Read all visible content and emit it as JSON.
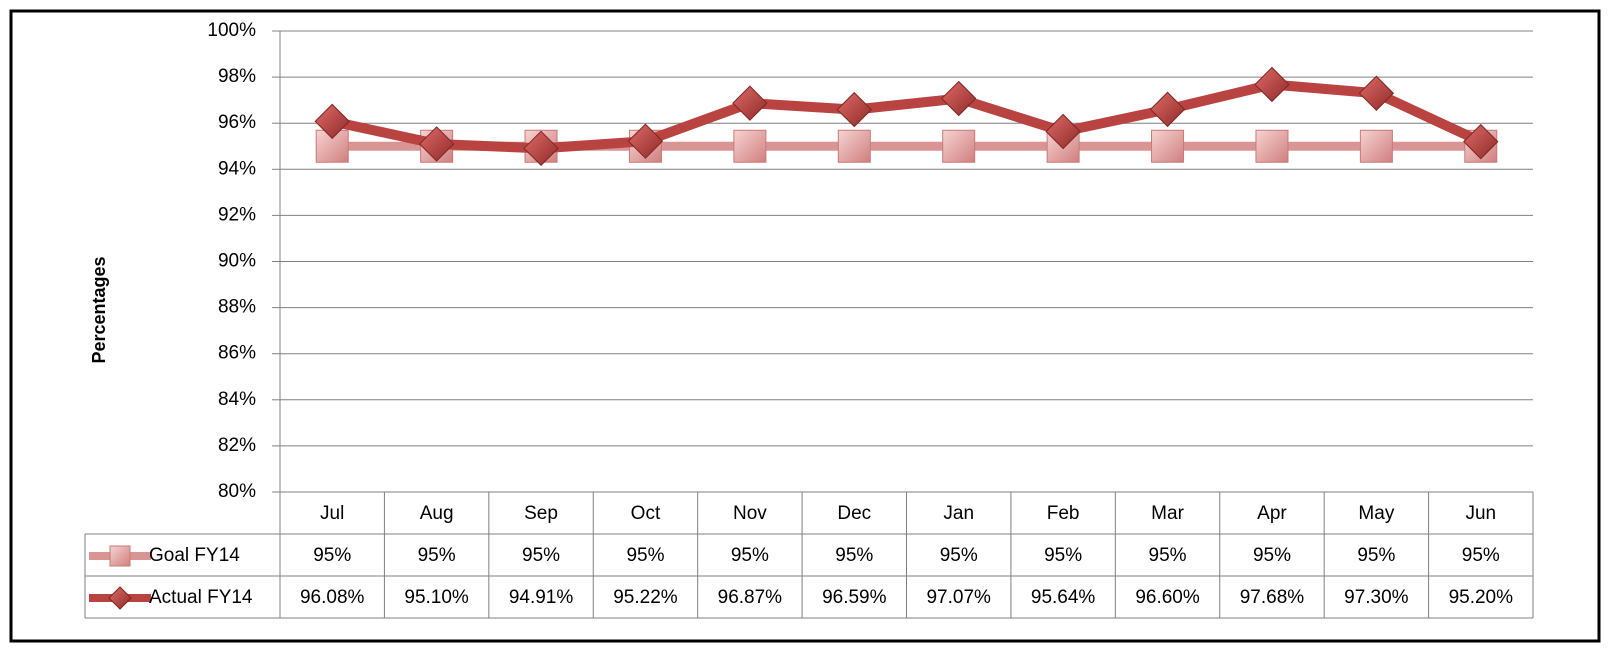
{
  "chart_data": {
    "type": "line",
    "y_label": "Percentages",
    "categories": [
      "Jul",
      "Aug",
      "Sep",
      "Oct",
      "Nov",
      "Dec",
      "Jan",
      "Feb",
      "Mar",
      "Apr",
      "May",
      "Jun"
    ],
    "series": [
      {
        "name": "Goal FY14",
        "color": "#d99594",
        "marker": "square",
        "values": [
          95,
          95,
          95,
          95,
          95,
          95,
          95,
          95,
          95,
          95,
          95,
          95
        ],
        "value_labels": [
          "95%",
          "95%",
          "95%",
          "95%",
          "95%",
          "95%",
          "95%",
          "95%",
          "95%",
          "95%",
          "95%",
          "95%"
        ]
      },
      {
        "name": "Actual FY14",
        "color": "#b84340",
        "marker": "diamond",
        "values": [
          96.08,
          95.1,
          94.91,
          95.22,
          96.87,
          96.59,
          97.07,
          95.64,
          96.6,
          97.68,
          97.3,
          95.2
        ],
        "value_labels": [
          "96.08%",
          "95.10%",
          "94.91%",
          "95.22%",
          "96.87%",
          "96.59%",
          "97.07%",
          "95.64%",
          "96.60%",
          "97.68%",
          "97.30%",
          "95.20%"
        ]
      }
    ],
    "ylim": [
      80,
      100
    ],
    "yticks": [
      {
        "value": 80,
        "label": "80%"
      },
      {
        "value": 82,
        "label": "82%"
      },
      {
        "value": 84,
        "label": "84%"
      },
      {
        "value": 86,
        "label": "86%"
      },
      {
        "value": 88,
        "label": "88%"
      },
      {
        "value": 90,
        "label": "90%"
      },
      {
        "value": 92,
        "label": "92%"
      },
      {
        "value": 94,
        "label": "94%"
      },
      {
        "value": 96,
        "label": "96%"
      },
      {
        "value": 98,
        "label": "98%"
      },
      {
        "value": 100,
        "label": "100%"
      }
    ],
    "grid": true
  }
}
